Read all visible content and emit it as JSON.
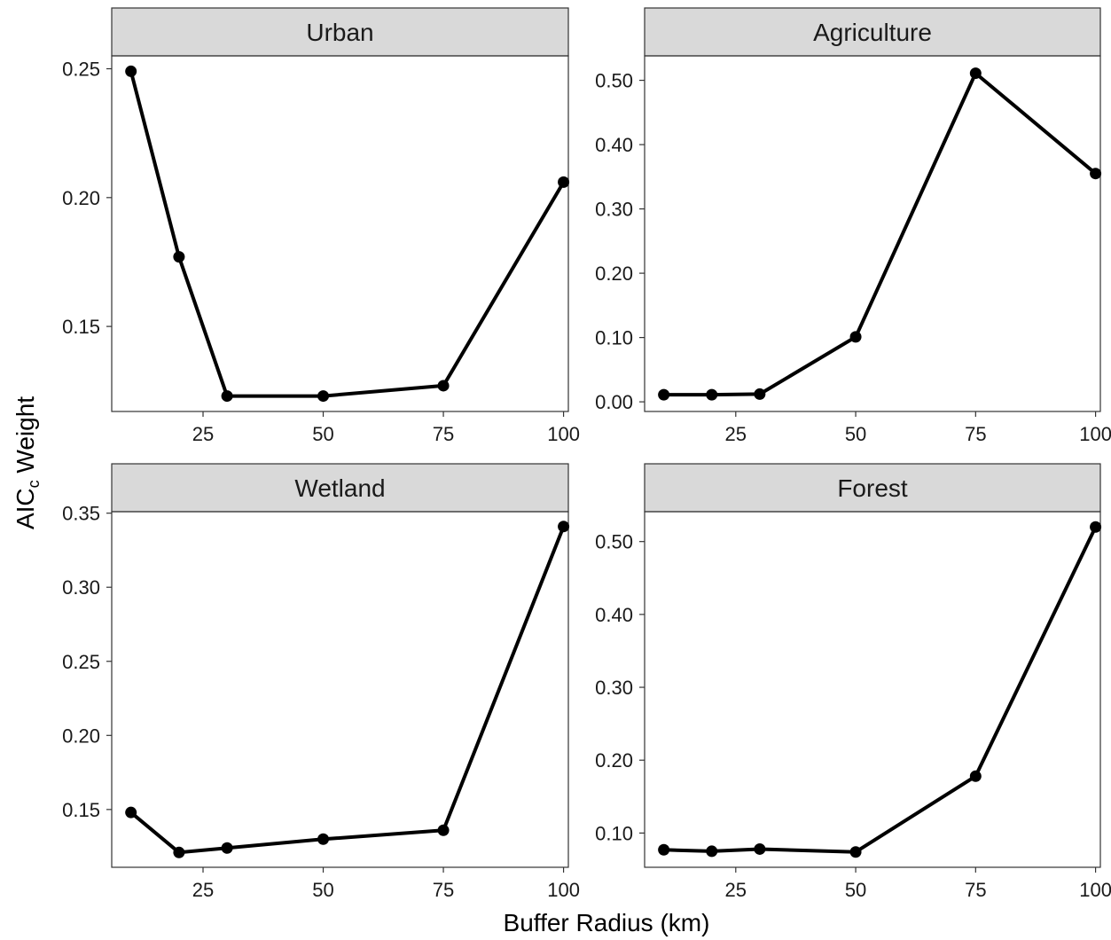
{
  "chart_data": {
    "type": "line",
    "xlabel": "Buffer Radius (km)",
    "ylabel": {
      "main": "AIC",
      "subscript": "c",
      "suffix": " Weight"
    },
    "grid": false,
    "facets": [
      {
        "title": "Urban",
        "x": [
          10,
          20,
          30,
          50,
          75,
          100
        ],
        "y": [
          0.249,
          0.177,
          0.123,
          0.123,
          0.127,
          0.206
        ],
        "xlim": [
          6,
          101
        ],
        "ylim": [
          0.117,
          0.255
        ],
        "xticks": [
          25,
          50,
          75,
          100
        ],
        "yticks": [
          0.15,
          0.2,
          0.25
        ],
        "ytick_labels": [
          "0.15",
          "0.20",
          "0.25"
        ]
      },
      {
        "title": "Agriculture",
        "x": [
          10,
          20,
          30,
          50,
          75,
          100
        ],
        "y": [
          0.011,
          0.011,
          0.012,
          0.101,
          0.511,
          0.355
        ],
        "xlim": [
          6,
          101
        ],
        "ylim": [
          -0.015,
          0.538
        ],
        "xticks": [
          25,
          50,
          75,
          100
        ],
        "yticks": [
          0.0,
          0.1,
          0.2,
          0.3,
          0.4,
          0.5
        ],
        "ytick_labels": [
          "0.00",
          "0.10",
          "0.20",
          "0.30",
          "0.40",
          "0.50"
        ]
      },
      {
        "title": "Wetland",
        "x": [
          10,
          20,
          30,
          50,
          75,
          100
        ],
        "y": [
          0.148,
          0.121,
          0.124,
          0.13,
          0.136,
          0.341
        ],
        "xlim": [
          6,
          101
        ],
        "ylim": [
          0.111,
          0.351
        ],
        "xticks": [
          25,
          50,
          75,
          100
        ],
        "yticks": [
          0.15,
          0.2,
          0.25,
          0.3,
          0.35
        ],
        "ytick_labels": [
          "0.15",
          "0.20",
          "0.25",
          "0.30",
          "0.35"
        ]
      },
      {
        "title": "Forest",
        "x": [
          10,
          20,
          30,
          50,
          75,
          100
        ],
        "y": [
          0.077,
          0.075,
          0.078,
          0.074,
          0.178,
          0.52
        ],
        "xlim": [
          6,
          101
        ],
        "ylim": [
          0.053,
          0.541
        ],
        "xticks": [
          25,
          50,
          75,
          100
        ],
        "yticks": [
          0.1,
          0.2,
          0.3,
          0.4,
          0.5
        ],
        "ytick_labels": [
          "0.10",
          "0.20",
          "0.30",
          "0.40",
          "0.50"
        ]
      }
    ]
  }
}
